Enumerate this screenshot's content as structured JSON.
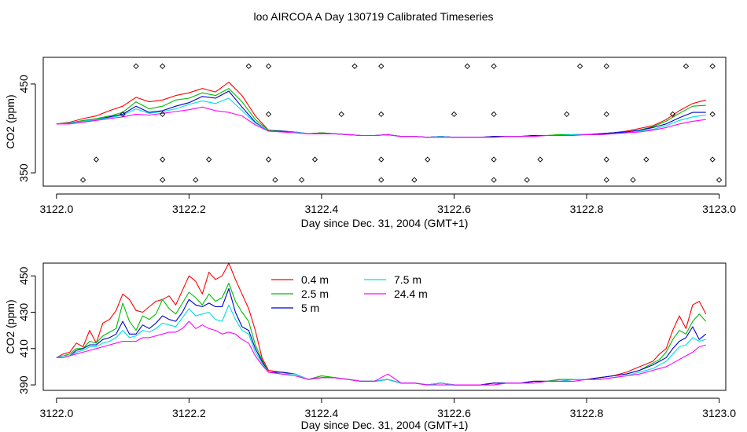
{
  "figure": {
    "title": "loo AIRCOA A  Day 130719  Calibrated Timeseries"
  },
  "chart_data": [
    {
      "type": "line",
      "xlabel": "Day since Dec. 31, 2004 (GMT+1)",
      "ylabel": "CO2 (ppm)",
      "xlim": [
        3121.98,
        3123.01
      ],
      "ylim": [
        335,
        480
      ],
      "xticks": [
        "3122.0",
        "3122.2",
        "3122.4",
        "3122.6",
        "3122.8",
        "3123.0"
      ],
      "xtick_values": [
        3122.0,
        3122.2,
        3122.4,
        3122.6,
        3122.8,
        3123.0
      ],
      "yticks": [
        "350",
        "450"
      ],
      "ytick_values": [
        350,
        450
      ],
      "grid": false,
      "x": [
        3122.0,
        3122.02,
        3122.04,
        3122.06,
        3122.08,
        3122.1,
        3122.12,
        3122.14,
        3122.16,
        3122.18,
        3122.2,
        3122.22,
        3122.24,
        3122.26,
        3122.28,
        3122.3,
        3122.32,
        3122.34,
        3122.36,
        3122.38,
        3122.4,
        3122.42,
        3122.44,
        3122.46,
        3122.48,
        3122.5,
        3122.52,
        3122.54,
        3122.56,
        3122.58,
        3122.6,
        3122.62,
        3122.64,
        3122.66,
        3122.68,
        3122.7,
        3122.72,
        3122.74,
        3122.76,
        3122.78,
        3122.8,
        3122.82,
        3122.84,
        3122.86,
        3122.88,
        3122.9,
        3122.92,
        3122.94,
        3122.96,
        3122.98
      ],
      "series": [
        {
          "color": "#ff0000",
          "values": [
            405,
            407,
            411,
            414,
            420,
            425,
            435,
            430,
            432,
            437,
            440,
            445,
            441,
            452,
            437,
            414,
            398,
            397,
            396,
            394,
            395,
            394,
            393,
            392,
            392,
            393,
            391,
            391,
            390,
            391,
            390,
            390,
            390,
            391,
            391,
            391,
            392,
            392,
            393,
            393,
            393,
            394,
            395,
            397,
            400,
            403,
            410,
            420,
            428,
            432
          ]
        },
        {
          "color": "#00bb00",
          "values": [
            405,
            406,
            409,
            411,
            414,
            418,
            430,
            422,
            425,
            432,
            434,
            440,
            437,
            445,
            430,
            410,
            398,
            397,
            396,
            394,
            395,
            394,
            393,
            392,
            392,
            393,
            391,
            391,
            390,
            391,
            390,
            390,
            390,
            391,
            391,
            391,
            392,
            392,
            393,
            393,
            393,
            394,
            395,
            396,
            398,
            402,
            408,
            417,
            425,
            426
          ]
        },
        {
          "color": "#0000cc",
          "values": [
            405,
            406,
            408,
            410,
            413,
            416,
            425,
            418,
            420,
            425,
            429,
            436,
            434,
            442,
            424,
            407,
            397,
            397,
            396,
            394,
            394,
            394,
            393,
            392,
            392,
            393,
            391,
            391,
            390,
            391,
            390,
            390,
            390,
            391,
            391,
            391,
            392,
            392,
            392,
            393,
            393,
            394,
            395,
            396,
            398,
            401,
            405,
            412,
            418,
            418
          ]
        },
        {
          "color": "#00dddd",
          "values": [
            405,
            406,
            408,
            410,
            412,
            415,
            422,
            417,
            419,
            422,
            427,
            431,
            428,
            434,
            420,
            406,
            397,
            396,
            396,
            394,
            394,
            394,
            393,
            392,
            392,
            393,
            391,
            391,
            390,
            391,
            390,
            390,
            390,
            390,
            391,
            391,
            391,
            392,
            392,
            393,
            393,
            393,
            394,
            395,
            397,
            399,
            403,
            409,
            413,
            415
          ]
        },
        {
          "color": "#ff00ff",
          "values": [
            405,
            405,
            407,
            409,
            411,
            413,
            416,
            415,
            417,
            419,
            421,
            424,
            420,
            418,
            414,
            404,
            397,
            396,
            395,
            394,
            394,
            394,
            393,
            392,
            392,
            393,
            391,
            391,
            390,
            390,
            390,
            390,
            390,
            390,
            391,
            391,
            391,
            392,
            392,
            392,
            393,
            393,
            394,
            395,
            396,
            398,
            401,
            405,
            408,
            410
          ]
        }
      ],
      "markers": {
        "shape": "diamond-open",
        "points": [
          [
            3122.12,
            470
          ],
          [
            3122.16,
            470
          ],
          [
            3122.29,
            470
          ],
          [
            3122.32,
            470
          ],
          [
            3122.45,
            470
          ],
          [
            3122.49,
            470
          ],
          [
            3122.62,
            470
          ],
          [
            3122.66,
            470
          ],
          [
            3122.79,
            470
          ],
          [
            3122.83,
            470
          ],
          [
            3122.95,
            470
          ],
          [
            3122.99,
            470
          ],
          [
            3122.1,
            416
          ],
          [
            3122.16,
            416
          ],
          [
            3122.32,
            416
          ],
          [
            3122.43,
            416
          ],
          [
            3122.49,
            416
          ],
          [
            3122.6,
            416
          ],
          [
            3122.66,
            416
          ],
          [
            3122.77,
            416
          ],
          [
            3122.83,
            416
          ],
          [
            3122.93,
            416
          ],
          [
            3122.99,
            416
          ],
          [
            3122.06,
            365
          ],
          [
            3122.16,
            365
          ],
          [
            3122.23,
            365
          ],
          [
            3122.32,
            365
          ],
          [
            3122.39,
            365
          ],
          [
            3122.49,
            365
          ],
          [
            3122.56,
            365
          ],
          [
            3122.66,
            365
          ],
          [
            3122.73,
            365
          ],
          [
            3122.83,
            365
          ],
          [
            3122.89,
            365
          ],
          [
            3122.99,
            365
          ],
          [
            3122.04,
            342
          ],
          [
            3122.16,
            342
          ],
          [
            3122.21,
            342
          ],
          [
            3122.33,
            342
          ],
          [
            3122.37,
            342
          ],
          [
            3122.49,
            342
          ],
          [
            3122.54,
            342
          ],
          [
            3122.66,
            342
          ],
          [
            3122.71,
            342
          ],
          [
            3122.83,
            342
          ],
          [
            3122.87,
            342
          ],
          [
            3123.0,
            342
          ]
        ]
      }
    },
    {
      "type": "line",
      "xlabel": "Day since Dec. 31, 2004 (GMT+1)",
      "ylabel": "CO2 (ppm)",
      "xlim": [
        3121.98,
        3123.01
      ],
      "ylim": [
        387,
        457
      ],
      "xticks": [
        "3122.0",
        "3122.2",
        "3122.4",
        "3122.6",
        "3122.8",
        "3123.0"
      ],
      "xtick_values": [
        3122.0,
        3122.2,
        3122.4,
        3122.6,
        3122.8,
        3123.0
      ],
      "yticks": [
        "390",
        "410",
        "430",
        "450"
      ],
      "ytick_values": [
        390,
        410,
        430,
        450
      ],
      "grid": false,
      "legend": {
        "placement": "top-center",
        "entries": [
          {
            "label": "0.4 m",
            "color": "#ff0000"
          },
          {
            "label": "2.5 m",
            "color": "#00bb00"
          },
          {
            "label": "5 m",
            "color": "#0000cc"
          },
          {
            "label": "7.5 m",
            "color": "#00dddd"
          },
          {
            "label": "24.4 m",
            "color": "#ff00ff"
          }
        ]
      },
      "x": [
        3122.0,
        3122.01,
        3122.02,
        3122.03,
        3122.04,
        3122.05,
        3122.06,
        3122.07,
        3122.08,
        3122.09,
        3122.1,
        3122.11,
        3122.12,
        3122.13,
        3122.14,
        3122.15,
        3122.16,
        3122.17,
        3122.18,
        3122.19,
        3122.2,
        3122.21,
        3122.22,
        3122.23,
        3122.24,
        3122.25,
        3122.26,
        3122.27,
        3122.28,
        3122.29,
        3122.3,
        3122.31,
        3122.32,
        3122.34,
        3122.36,
        3122.38,
        3122.4,
        3122.42,
        3122.44,
        3122.46,
        3122.48,
        3122.5,
        3122.52,
        3122.54,
        3122.56,
        3122.58,
        3122.6,
        3122.62,
        3122.64,
        3122.66,
        3122.68,
        3122.7,
        3122.72,
        3122.74,
        3122.76,
        3122.78,
        3122.8,
        3122.82,
        3122.84,
        3122.86,
        3122.88,
        3122.9,
        3122.91,
        3122.92,
        3122.93,
        3122.94,
        3122.95,
        3122.96,
        3122.97,
        3122.98
      ],
      "series": [
        {
          "name": "0.4 m",
          "color": "#ff0000",
          "values": [
            405,
            407,
            408,
            413,
            411,
            420,
            413,
            424,
            426,
            431,
            440,
            437,
            431,
            430,
            433,
            436,
            437,
            439,
            434,
            442,
            450,
            447,
            440,
            452,
            448,
            450,
            457,
            448,
            440,
            432,
            420,
            405,
            398,
            397,
            396,
            393,
            395,
            394,
            393,
            392,
            392,
            393,
            391,
            391,
            390,
            391,
            390,
            390,
            390,
            391,
            391,
            391,
            392,
            392,
            393,
            393,
            393,
            394,
            395,
            397,
            400,
            403,
            407,
            410,
            420,
            428,
            421,
            434,
            436,
            429
          ]
        },
        {
          "name": "2.5 m",
          "color": "#00bb00",
          "values": [
            405,
            406,
            407,
            410,
            410,
            414,
            413,
            417,
            419,
            421,
            435,
            425,
            420,
            428,
            426,
            429,
            437,
            432,
            429,
            435,
            441,
            438,
            434,
            440,
            436,
            438,
            446,
            436,
            430,
            425,
            412,
            404,
            397,
            397,
            396,
            393,
            395,
            394,
            393,
            392,
            392,
            393,
            391,
            391,
            390,
            391,
            390,
            390,
            390,
            391,
            391,
            391,
            392,
            392,
            393,
            393,
            393,
            394,
            395,
            396,
            398,
            402,
            404,
            408,
            415,
            420,
            418,
            425,
            429,
            425
          ]
        },
        {
          "name": "5 m",
          "color": "#0000cc",
          "values": [
            405,
            406,
            406,
            409,
            410,
            412,
            412,
            415,
            416,
            418,
            425,
            418,
            418,
            423,
            421,
            424,
            428,
            426,
            425,
            430,
            437,
            434,
            433,
            435,
            433,
            433,
            443,
            430,
            422,
            420,
            410,
            403,
            397,
            397,
            396,
            393,
            394,
            394,
            393,
            392,
            392,
            393,
            391,
            391,
            390,
            391,
            390,
            390,
            390,
            391,
            391,
            391,
            392,
            392,
            392,
            393,
            393,
            394,
            395,
            396,
            398,
            401,
            403,
            405,
            410,
            414,
            416,
            422,
            415,
            418
          ]
        },
        {
          "name": "7.5 m",
          "color": "#00dddd",
          "values": [
            405,
            406,
            406,
            408,
            409,
            411,
            411,
            413,
            414,
            416,
            420,
            416,
            417,
            420,
            419,
            421,
            424,
            423,
            422,
            427,
            432,
            428,
            429,
            430,
            426,
            425,
            434,
            426,
            420,
            418,
            408,
            402,
            397,
            396,
            396,
            393,
            394,
            394,
            393,
            392,
            392,
            393,
            391,
            391,
            390,
            391,
            390,
            390,
            390,
            390,
            391,
            391,
            391,
            392,
            392,
            393,
            393,
            393,
            394,
            395,
            397,
            399,
            401,
            403,
            407,
            411,
            412,
            416,
            414,
            415
          ]
        },
        {
          "name": "24.4 m",
          "color": "#ff00ff",
          "values": [
            405,
            405,
            406,
            407,
            408,
            409,
            410,
            411,
            412,
            413,
            414,
            414,
            414,
            416,
            416,
            417,
            418,
            419,
            419,
            421,
            425,
            421,
            423,
            421,
            420,
            418,
            419,
            418,
            415,
            413,
            406,
            401,
            397,
            396,
            395,
            393,
            394,
            394,
            393,
            392,
            392,
            396,
            391,
            391,
            390,
            390,
            390,
            390,
            390,
            390,
            391,
            391,
            391,
            392,
            392,
            392,
            393,
            393,
            394,
            395,
            396,
            398,
            399,
            400,
            402,
            404,
            406,
            408,
            411,
            412
          ]
        }
      ]
    }
  ]
}
